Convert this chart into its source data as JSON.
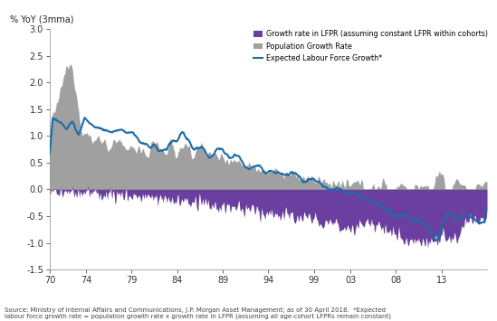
{
  "title": "% YoY (3mma)",
  "xlim": [
    1970,
    2018
  ],
  "ylim": [
    -1.5,
    3.0
  ],
  "yticks": [
    -1.5,
    -1.0,
    -0.5,
    0.0,
    0.5,
    1.0,
    1.5,
    2.0,
    2.5,
    3.0
  ],
  "xtick_labels": [
    "70",
    "74",
    "79",
    "84",
    "89",
    "94",
    "99",
    "03",
    "08",
    "13"
  ],
  "xtick_positions": [
    1970,
    1974,
    1979,
    1984,
    1989,
    1994,
    1999,
    2003,
    2008,
    2013
  ],
  "color_lfpr": "#6b3fa0",
  "color_pop": "#a0a0a0",
  "color_expected": "#1b6ca8",
  "source_text": "Source: Ministry of Internal Affairs and Communications, J.P. Morgan Asset Management; as of 30 April 2018.  *Expected\nlabour force growth rate = population growth rate x growth rate in LFPR (assuming all age-cohort LFPRs remain constant)",
  "legend_labels": [
    "Growth rate in LFPR (assuming constant LFPR within cohorts)",
    "Population Growth Rate",
    "Expected Labour Force Growth*"
  ],
  "background_color": "#ffffff"
}
